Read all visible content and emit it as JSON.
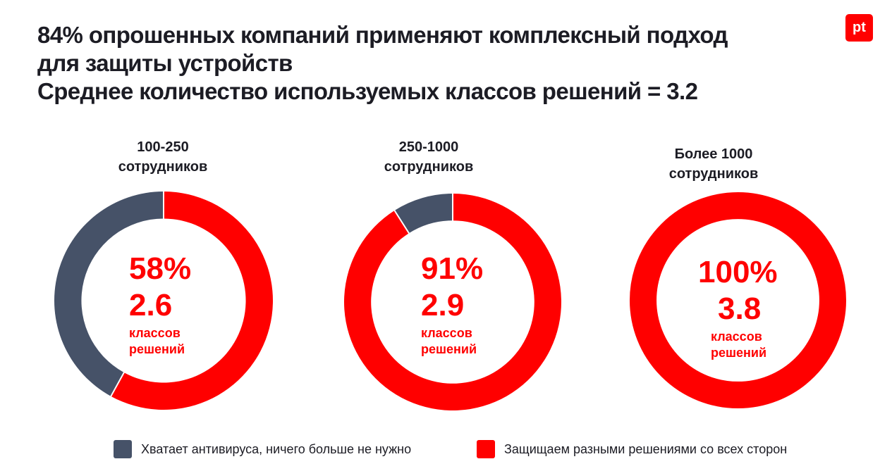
{
  "title": {
    "line1": "84% опрошенных компаний применяют комплексный подход",
    "line2": "для защиты устройств",
    "line3": "Среднее количество используемых классов решений = 3.2"
  },
  "logo": {
    "text": "pt"
  },
  "colors": {
    "protected": "#ff0000",
    "antivirus_only": "#465268"
  },
  "legend": [
    {
      "label": "Хватает антивируса, ничего больше не нужно",
      "color": "#465268"
    },
    {
      "label": "Защищаем разными решениями со всех сторон",
      "color": "#ff0000"
    }
  ],
  "chart_data": [
    {
      "type": "pie",
      "title_line1": "100-250",
      "title_line2": "сотрудников",
      "slices": [
        {
          "name": "Защищаем разными решениями со всех сторон",
          "value": 58
        },
        {
          "name": "Хватает антивируса, ничего больше не нужно",
          "value": 42
        }
      ],
      "center_percent": "58%",
      "center_avg": "2.6",
      "center_caption_line1": "классов",
      "center_caption_line2": "решений"
    },
    {
      "type": "pie",
      "title_line1": "250-1000",
      "title_line2": "сотрудников",
      "slices": [
        {
          "name": "Защищаем разными решениями со всех сторон",
          "value": 91
        },
        {
          "name": "Хватает антивируса, ничего больше не нужно",
          "value": 9
        }
      ],
      "center_percent": "91%",
      "center_avg": "2.9",
      "center_caption_line1": "классов",
      "center_caption_line2": "решений"
    },
    {
      "type": "pie",
      "title_line1": "Более 1000",
      "title_line2": "сотрудников",
      "slices": [
        {
          "name": "Защищаем разными решениями со всех сторон",
          "value": 100
        },
        {
          "name": "Хватает антивируса, ничего больше не нужно",
          "value": 0
        }
      ],
      "center_percent": "100%",
      "center_avg": "3.8",
      "center_caption_line1": "классов",
      "center_caption_line2": "решений"
    }
  ]
}
